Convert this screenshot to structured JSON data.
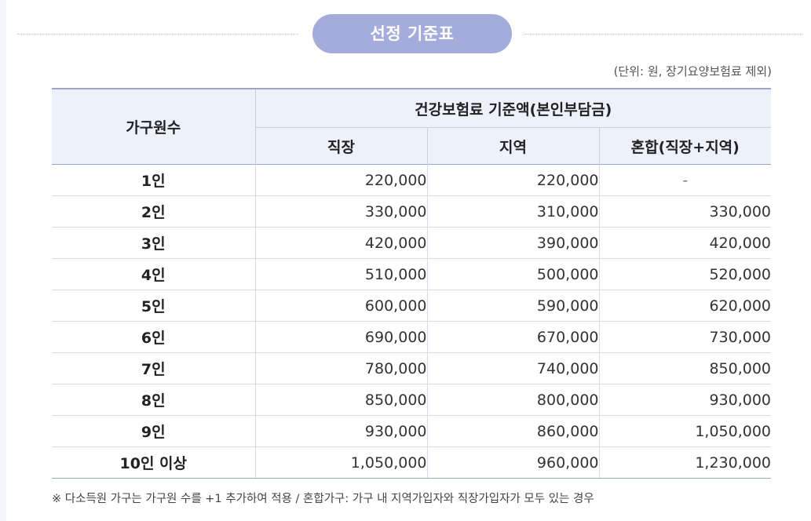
{
  "title": "선정 기준표",
  "unit_note": "(단위: 원, 장기요양보험료 제외)",
  "table": {
    "household_header": "가구원수",
    "group_header": "건강보험료 기준액(본인부담금)",
    "sub_headers": [
      "직장",
      "지역",
      "혼합(직장+지역)"
    ],
    "rows": [
      {
        "household": "1인",
        "workplace": "220,000",
        "regional": "220,000",
        "mixed": "-"
      },
      {
        "household": "2인",
        "workplace": "330,000",
        "regional": "310,000",
        "mixed": "330,000"
      },
      {
        "household": "3인",
        "workplace": "420,000",
        "regional": "390,000",
        "mixed": "420,000"
      },
      {
        "household": "4인",
        "workplace": "510,000",
        "regional": "500,000",
        "mixed": "520,000"
      },
      {
        "household": "5인",
        "workplace": "600,000",
        "regional": "590,000",
        "mixed": "620,000"
      },
      {
        "household": "6인",
        "workplace": "690,000",
        "regional": "670,000",
        "mixed": "730,000"
      },
      {
        "household": "7인",
        "workplace": "780,000",
        "regional": "740,000",
        "mixed": "850,000"
      },
      {
        "household": "8인",
        "workplace": "850,000",
        "regional": "800,000",
        "mixed": "930,000"
      },
      {
        "household": "9인",
        "workplace": "930,000",
        "regional": "860,000",
        "mixed": "1,050,000"
      },
      {
        "household": "10인 이상",
        "workplace": "1,050,000",
        "regional": "960,000",
        "mixed": "1,230,000"
      }
    ]
  },
  "footnote": "※ 다소득원 가구는 가구원 수를 +1 추가하여 적용 / 혼합가구: 가구 내 지역가입자와 직장가입자가 모두 있는 경우",
  "colors": {
    "pill": "#a4acdc",
    "header_bg": "#edf1f9",
    "rule": "#9aa6c2"
  }
}
